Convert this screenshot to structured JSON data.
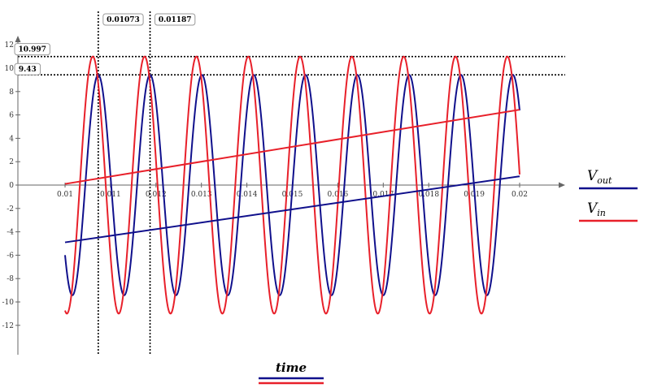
{
  "chart_data": {
    "type": "line",
    "xlim": [
      0.01,
      0.02
    ],
    "ylim": [
      -12,
      12
    ],
    "x_ticks": [
      0.01,
      0.011,
      0.012,
      0.013,
      0.014,
      0.015,
      0.016,
      0.017,
      0.018,
      0.019,
      0.02
    ],
    "x_tick_labels": [
      "0.01",
      "0.011",
      "0.012",
      "0.013",
      "0.014",
      "0.015",
      "0.016",
      "0.017",
      "0.018",
      "0.019",
      "0.02"
    ],
    "y_ticks": [
      -12,
      -10,
      -8,
      -6,
      -4,
      -2,
      0,
      2,
      4,
      6,
      8,
      10,
      12
    ],
    "y_tick_labels": [
      "-12",
      "-10",
      "-8",
      "-6",
      "-4",
      "-2",
      "0",
      "2",
      "4",
      "6",
      "8",
      "10",
      "12"
    ],
    "grid": false,
    "legend_position": "right",
    "xlabel": "time",
    "series": [
      {
        "name": "Vout",
        "label_main": "V",
        "label_sub": "out",
        "color": "#10108c",
        "kind": "sine",
        "amplitude": 9.43,
        "period": 0.00114,
        "peak_at": 0.01073
      },
      {
        "name": "Vin",
        "label_main": "V",
        "label_sub": "in",
        "color": "#e8202a",
        "kind": "sine",
        "amplitude": 10.997,
        "period": 0.00114,
        "peak_at": 0.01073,
        "phase_lead": 0.00012
      },
      {
        "name": "Vout ramp",
        "color": "#10108c",
        "kind": "ramp",
        "points": [
          [
            0.01,
            -4.9
          ],
          [
            0.02,
            0.75
          ]
        ]
      },
      {
        "name": "Vin ramp",
        "color": "#e8202a",
        "kind": "ramp",
        "points": [
          [
            0.01,
            0.1
          ],
          [
            0.02,
            6.45
          ]
        ]
      }
    ],
    "markers": {
      "x": [
        {
          "value": 0.01073,
          "label": "0.01073"
        },
        {
          "value": 0.01187,
          "label": "0.01187"
        }
      ],
      "y": [
        {
          "value": 10.997,
          "label": "10.997"
        },
        {
          "value": 9.43,
          "label": "9.43"
        }
      ]
    }
  }
}
